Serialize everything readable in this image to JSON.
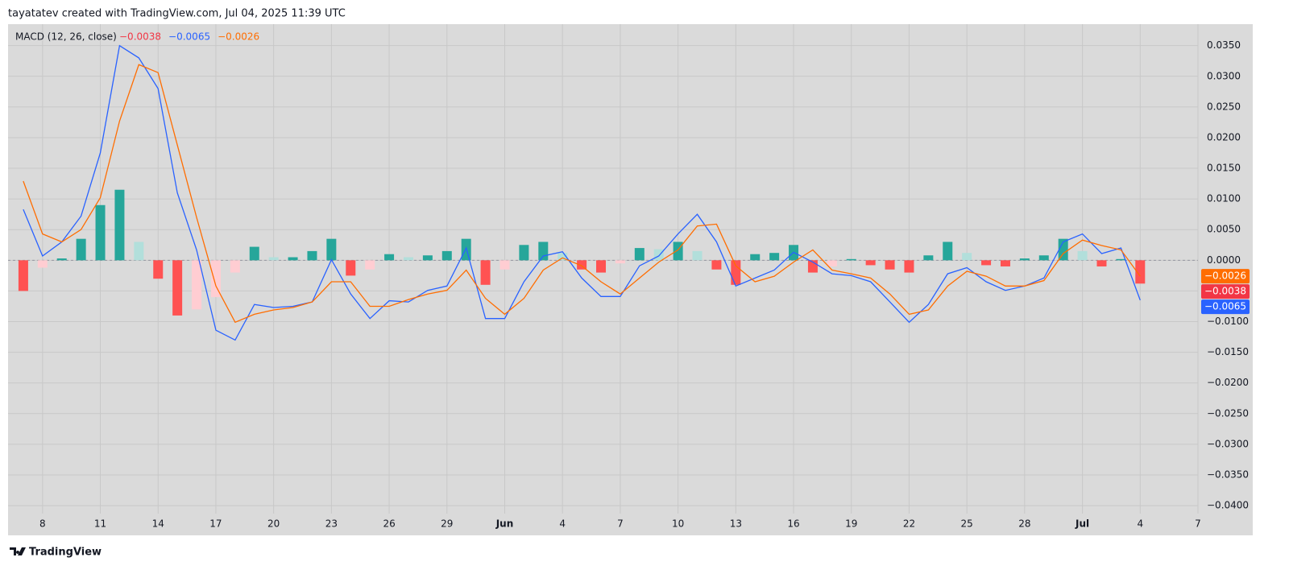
{
  "header": {
    "text": "tayatatev created with TradingView.com, Jul 04, 2025 11:39 UTC"
  },
  "footer": {
    "text": "TradingView"
  },
  "chart_data": {
    "type": "combo",
    "title": "MACD (12, 26, close)",
    "grid": true,
    "x": [
      "2025-05-07",
      "2025-05-08",
      "2025-05-09",
      "2025-05-10",
      "2025-05-11",
      "2025-05-12",
      "2025-05-13",
      "2025-05-14",
      "2025-05-15",
      "2025-05-16",
      "2025-05-17",
      "2025-05-18",
      "2025-05-19",
      "2025-05-20",
      "2025-05-21",
      "2025-05-22",
      "2025-05-23",
      "2025-05-24",
      "2025-05-25",
      "2025-05-26",
      "2025-05-27",
      "2025-05-28",
      "2025-05-29",
      "2025-05-30",
      "2025-05-31",
      "2025-06-01",
      "2025-06-02",
      "2025-06-03",
      "2025-06-04",
      "2025-06-05",
      "2025-06-06",
      "2025-06-07",
      "2025-06-08",
      "2025-06-09",
      "2025-06-10",
      "2025-06-11",
      "2025-06-12",
      "2025-06-13",
      "2025-06-14",
      "2025-06-15",
      "2025-06-16",
      "2025-06-17",
      "2025-06-18",
      "2025-06-19",
      "2025-06-20",
      "2025-06-21",
      "2025-06-22",
      "2025-06-23",
      "2025-06-24",
      "2025-06-25",
      "2025-06-26",
      "2025-06-27",
      "2025-06-28",
      "2025-06-29",
      "2025-06-30",
      "2025-07-01",
      "2025-07-02",
      "2025-07-03",
      "2025-07-04"
    ],
    "xlim": [
      "2025-05-06T05:00",
      "2025-07-07T00:00"
    ],
    "xticks": [
      {
        "value": "2025-05-08",
        "label": "8"
      },
      {
        "value": "2025-05-11",
        "label": "11"
      },
      {
        "value": "2025-05-14",
        "label": "14"
      },
      {
        "value": "2025-05-17",
        "label": "17"
      },
      {
        "value": "2025-05-20",
        "label": "20"
      },
      {
        "value": "2025-05-23",
        "label": "23"
      },
      {
        "value": "2025-05-26",
        "label": "26"
      },
      {
        "value": "2025-05-29",
        "label": "29"
      },
      {
        "value": "2025-06-01",
        "label": "Jun"
      },
      {
        "value": "2025-06-04",
        "label": "4"
      },
      {
        "value": "2025-06-07",
        "label": "7"
      },
      {
        "value": "2025-06-10",
        "label": "10"
      },
      {
        "value": "2025-06-13",
        "label": "13"
      },
      {
        "value": "2025-06-16",
        "label": "16"
      },
      {
        "value": "2025-06-19",
        "label": "19"
      },
      {
        "value": "2025-06-22",
        "label": "22"
      },
      {
        "value": "2025-06-25",
        "label": "25"
      },
      {
        "value": "2025-06-28",
        "label": "28"
      },
      {
        "value": "2025-07-01",
        "label": "Jul"
      },
      {
        "value": "2025-07-04",
        "label": "4"
      },
      {
        "value": "2025-07-07",
        "label": "7"
      }
    ],
    "ylim": [
      -0.0413,
      0.0385
    ],
    "yticks": [
      {
        "value": 0.035,
        "label": "0.0350"
      },
      {
        "value": 0.03,
        "label": "0.0300"
      },
      {
        "value": 0.025,
        "label": "0.0250"
      },
      {
        "value": 0.02,
        "label": "0.0200"
      },
      {
        "value": 0.015,
        "label": "0.0150"
      },
      {
        "value": 0.01,
        "label": "0.0100"
      },
      {
        "value": 0.005,
        "label": "0.0050"
      },
      {
        "value": 0,
        "label": "0.0000"
      },
      {
        "value": -0.005,
        "label": "−0.0050"
      },
      {
        "value": -0.01,
        "label": "−0.0100"
      },
      {
        "value": -0.015,
        "label": "−0.0150"
      },
      {
        "value": -0.02,
        "label": "−0.0200"
      },
      {
        "value": -0.025,
        "label": "−0.0250"
      },
      {
        "value": -0.03,
        "label": "−0.0300"
      },
      {
        "value": -0.035,
        "label": "−0.0350"
      },
      {
        "value": -0.04,
        "label": "−0.0400"
      }
    ],
    "series": [
      {
        "type": "bar",
        "color": "#f23645",
        "colors": [
          "#26a69a",
          "#b2dfdb",
          "#ff5252",
          "#ffcdd2"
        ],
        "last_value_label": "−0.0038",
        "values": [
          -0.005,
          -0.0012,
          0.0003,
          0.0035,
          0.009,
          0.0115,
          0.003,
          -0.003,
          -0.009,
          -0.008,
          -0.006,
          -0.002,
          0.0022,
          0.0005,
          0.0005,
          0.0015,
          0.0035,
          -0.0025,
          -0.0015,
          0.001,
          0.0005,
          0.0008,
          0.0015,
          0.0035,
          -0.004,
          -0.0015,
          0.0025,
          0.003,
          0.0012,
          -0.0015,
          -0.002,
          -0.0005,
          0.002,
          0.0018,
          0.003,
          0.0015,
          -0.0015,
          -0.004,
          0.001,
          0.0012,
          0.0025,
          -0.002,
          -0.001,
          0.0002,
          -0.0008,
          -0.0015,
          -0.002,
          0.0008,
          0.003,
          0.0012,
          -0.0008,
          -0.001,
          0.0003,
          0.0008,
          0.0035,
          0.0015,
          -0.001,
          0.0002,
          -0.0038
        ]
      },
      {
        "type": "line",
        "color": "#2962ff",
        "last_value_label": "−0.0065",
        "values": [
          0.0083,
          0.0007,
          0.003,
          0.0072,
          0.0175,
          0.035,
          0.033,
          0.028,
          0.011,
          0.0017,
          -0.0114,
          -0.013,
          -0.0072,
          -0.0077,
          -0.0075,
          -0.0068,
          0.0001,
          -0.0055,
          -0.0095,
          -0.0066,
          -0.0068,
          -0.0049,
          -0.0042,
          0.002,
          -0.0095,
          -0.0095,
          -0.0035,
          0.0007,
          0.0014,
          -0.0029,
          -0.0059,
          -0.0059,
          -0.0009,
          0.0007,
          0.0043,
          0.0075,
          0.003,
          -0.0042,
          -0.0029,
          -0.0016,
          0.0013,
          -0.0003,
          -0.0022,
          -0.0025,
          -0.0035,
          -0.0068,
          -0.0101,
          -0.0072,
          -0.0022,
          -0.0012,
          -0.0035,
          -0.0049,
          -0.0042,
          -0.0029,
          0.003,
          0.0043,
          0.0011,
          0.002,
          -0.0065
        ]
      },
      {
        "type": "line",
        "color": "#ff6d00",
        "last_value_label": "−0.0026",
        "values": [
          0.0129,
          0.0043,
          0.003,
          0.005,
          0.0102,
          0.0227,
          0.0319,
          0.0306,
          0.0188,
          0.007,
          -0.0042,
          -0.0101,
          -0.0088,
          -0.0081,
          -0.0077,
          -0.0068,
          -0.0035,
          -0.0035,
          -0.0075,
          -0.0075,
          -0.0064,
          -0.0055,
          -0.0049,
          -0.0016,
          -0.0062,
          -0.0088,
          -0.0062,
          -0.0016,
          0.0004,
          -0.0009,
          -0.0035,
          -0.0055,
          -0.0029,
          -0.0003,
          0.0017,
          0.0056,
          0.0059,
          -0.0009,
          -0.0035,
          -0.0026,
          -0.0003,
          0.0017,
          -0.0016,
          -0.0022,
          -0.0029,
          -0.0055,
          -0.0088,
          -0.0081,
          -0.0042,
          -0.0018,
          -0.0026,
          -0.0042,
          -0.0042,
          -0.0033,
          0.0011,
          0.0033,
          0.0024,
          0.0017,
          -0.0026
        ]
      }
    ]
  }
}
